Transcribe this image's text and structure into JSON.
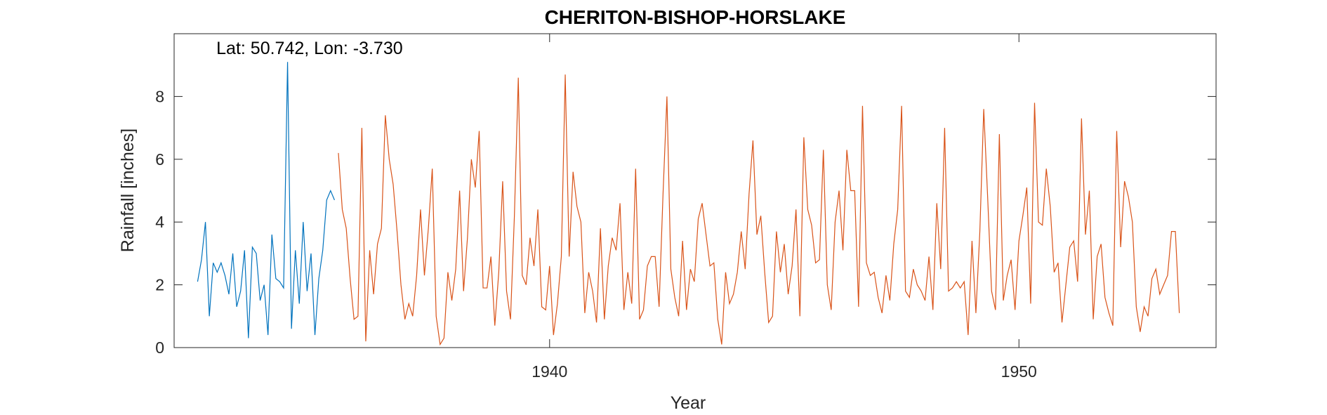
{
  "chart_data": {
    "type": "line",
    "title": "CHERITON-BISHOP-HORSLAKE",
    "annotation": "Lat: 50.742, Lon: -3.730",
    "xlabel": "Year",
    "ylabel": "Rainfall [inches]",
    "xlim": [
      1932,
      1954.2
    ],
    "ylim": [
      0,
      10
    ],
    "xticks": [
      1940,
      1950
    ],
    "yticks": [
      0,
      2,
      4,
      6,
      8
    ],
    "grid": false,
    "series": [
      {
        "color": "#0072bd",
        "x": [
          1932.5,
          1932.583,
          1932.667,
          1932.75,
          1932.833,
          1932.917,
          1933,
          1933.083,
          1933.167,
          1933.25,
          1933.333,
          1933.417,
          1933.5,
          1933.583,
          1933.667,
          1933.75,
          1933.833,
          1933.917,
          1934,
          1934.083,
          1934.167,
          1934.25,
          1934.333,
          1934.417,
          1934.5,
          1934.583,
          1934.667,
          1934.75,
          1934.833,
          1934.917,
          1935,
          1935.083,
          1935.167,
          1935.25,
          1935.333,
          1935.417
        ],
        "values": [
          2.1,
          2.8,
          4.0,
          1.0,
          2.7,
          2.4,
          2.7,
          2.3,
          1.7,
          3.0,
          1.3,
          1.8,
          3.1,
          0.3,
          3.2,
          3.0,
          1.5,
          2.0,
          0.4,
          3.6,
          2.2,
          2.1,
          1.9,
          9.1,
          0.6,
          3.1,
          1.4,
          4.0,
          1.8,
          3.0,
          0.4,
          2.2,
          3.1,
          4.7,
          5.0,
          4.7
        ]
      },
      {
        "color": "#d95319",
        "x": [
          1935.5,
          1935.583,
          1935.667,
          1935.75,
          1935.833,
          1935.917,
          1936,
          1936.083,
          1936.167,
          1936.25,
          1936.333,
          1936.417,
          1936.5,
          1936.583,
          1936.667,
          1936.75,
          1936.833,
          1936.917,
          1937,
          1937.083,
          1937.167,
          1937.25,
          1937.333,
          1937.417,
          1937.5,
          1937.583,
          1937.667,
          1937.75,
          1937.833,
          1937.917,
          1938,
          1938.083,
          1938.167,
          1938.25,
          1938.333,
          1938.417,
          1938.5,
          1938.583,
          1938.667,
          1938.75,
          1938.833,
          1938.917,
          1939,
          1939.083,
          1939.167,
          1939.25,
          1939.333,
          1939.417,
          1939.5,
          1939.583,
          1939.667,
          1939.75,
          1939.833,
          1939.917,
          1940,
          1940.083,
          1940.167,
          1940.25,
          1940.333,
          1940.417,
          1940.5,
          1940.583,
          1940.667,
          1940.75,
          1940.833,
          1940.917,
          1941,
          1941.083,
          1941.167,
          1941.25,
          1941.333,
          1941.417,
          1941.5,
          1941.583,
          1941.667,
          1941.75,
          1941.833,
          1941.917,
          1942,
          1942.083,
          1942.167,
          1942.25,
          1942.333,
          1942.417,
          1942.5,
          1942.583,
          1942.667,
          1942.75,
          1942.833,
          1942.917,
          1943,
          1943.083,
          1943.167,
          1943.25,
          1943.333,
          1943.417,
          1943.5,
          1943.583,
          1943.667,
          1943.75,
          1943.833,
          1943.917,
          1944,
          1944.083,
          1944.167,
          1944.25,
          1944.333,
          1944.417,
          1944.5,
          1944.583,
          1944.667,
          1944.75,
          1944.833,
          1944.917,
          1945,
          1945.083,
          1945.167,
          1945.25,
          1945.333,
          1945.417,
          1945.5,
          1945.583,
          1945.667,
          1945.75,
          1945.833,
          1945.917,
          1946,
          1946.083,
          1946.167,
          1946.25,
          1946.333,
          1946.417,
          1946.5,
          1946.583,
          1946.667,
          1946.75,
          1946.833,
          1946.917,
          1947,
          1947.083,
          1947.167,
          1947.25,
          1947.333,
          1947.417,
          1947.5,
          1947.583,
          1947.667,
          1947.75,
          1947.833,
          1947.917,
          1948,
          1948.083,
          1948.167,
          1948.25,
          1948.333,
          1948.417,
          1948.5,
          1948.583,
          1948.667,
          1948.75,
          1948.833,
          1948.917,
          1949,
          1949.083,
          1949.167,
          1949.25,
          1949.333,
          1949.417,
          1949.5,
          1949.583,
          1949.667,
          1949.75,
          1949.833,
          1949.917,
          1950,
          1950.083,
          1950.167,
          1950.25,
          1950.333,
          1950.417,
          1950.5,
          1950.583,
          1950.667,
          1950.75,
          1950.833,
          1950.917,
          1951,
          1951.083,
          1951.167,
          1951.25,
          1951.333,
          1951.417,
          1951.5,
          1951.583,
          1951.667,
          1951.75,
          1951.833,
          1951.917,
          1952,
          1952.083,
          1952.167,
          1952.25,
          1952.333,
          1952.417,
          1952.5,
          1952.583,
          1952.667,
          1952.75,
          1952.833,
          1952.917,
          1953,
          1953.083,
          1953.167,
          1953.25,
          1953.333,
          1953.417
        ],
        "values": [
          6.2,
          4.4,
          3.8,
          2.2,
          0.9,
          1.0,
          7.0,
          0.2,
          3.1,
          1.7,
          3.3,
          3.8,
          7.4,
          6.0,
          5.2,
          3.7,
          2.0,
          0.9,
          1.4,
          1.0,
          2.3,
          4.4,
          2.3,
          3.8,
          5.7,
          1.0,
          0.1,
          0.3,
          2.4,
          1.5,
          2.5,
          5.0,
          1.8,
          3.5,
          6.0,
          5.1,
          6.9,
          1.9,
          1.9,
          2.9,
          0.7,
          2.4,
          5.3,
          1.8,
          0.9,
          4.2,
          8.6,
          2.3,
          2.0,
          3.5,
          2.6,
          4.4,
          1.3,
          1.2,
          2.6,
          0.4,
          1.4,
          2.9,
          8.7,
          2.9,
          5.6,
          4.5,
          4.0,
          1.1,
          2.4,
          1.8,
          0.8,
          3.8,
          0.9,
          2.6,
          3.5,
          3.1,
          4.6,
          1.2,
          2.4,
          1.4,
          5.7,
          0.9,
          1.2,
          2.6,
          2.9,
          2.9,
          1.3,
          4.9,
          8.0,
          2.5,
          1.6,
          1.0,
          3.4,
          1.2,
          2.5,
          2.1,
          4.1,
          4.6,
          3.6,
          2.6,
          2.7,
          0.9,
          0.1,
          2.4,
          1.4,
          1.7,
          2.4,
          3.7,
          2.5,
          4.9,
          6.6,
          3.6,
          4.2,
          2.4,
          0.8,
          1.0,
          3.7,
          2.4,
          3.3,
          1.7,
          2.6,
          4.4,
          1.0,
          6.7,
          4.4,
          3.9,
          2.7,
          2.8,
          6.3,
          2.0,
          1.2,
          4.0,
          5.0,
          3.1,
          6.3,
          5.0,
          5.0,
          1.3,
          7.7,
          2.7,
          2.3,
          2.4,
          1.6,
          1.1,
          2.3,
          1.5,
          3.3,
          4.4,
          7.7,
          1.8,
          1.6,
          2.5,
          2.0,
          1.8,
          1.5,
          2.9,
          1.2,
          4.6,
          2.5,
          7.0,
          1.8,
          1.9,
          2.1,
          1.9,
          2.1,
          0.4,
          3.4,
          1.1,
          3.7,
          7.6,
          4.8,
          1.8,
          1.2,
          6.8,
          1.5,
          2.3,
          2.8,
          1.2,
          3.4,
          4.2,
          5.1,
          1.4,
          7.8,
          4.0,
          3.9,
          5.7,
          4.5,
          2.4,
          2.7,
          0.8,
          2.0,
          3.2,
          3.4,
          2.1,
          7.3,
          3.6,
          5.0,
          0.9,
          2.9,
          3.3,
          1.6,
          1.1,
          0.7,
          6.9,
          3.2,
          5.3,
          4.8,
          4.0,
          1.3,
          0.5,
          1.3,
          1.0,
          2.2,
          2.5,
          1.7,
          2.0,
          2.3,
          3.7,
          3.7,
          1.1
        ]
      }
    ]
  }
}
